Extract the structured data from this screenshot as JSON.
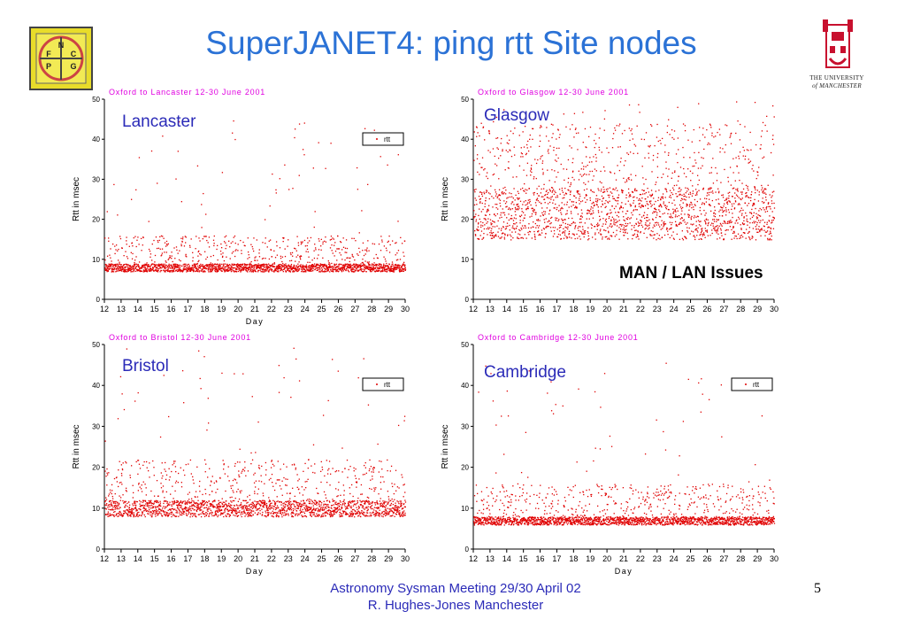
{
  "slide": {
    "title": "SuperJANET4: ping rtt Site nodes",
    "issue_label": "MAN / LAN Issues",
    "footer_line1": "Astronomy Sysman Meeting  29/30 April 02",
    "footer_line2": "R. Hughes-Jones  Manchester",
    "page_number": "5"
  },
  "logos": {
    "left_letters": [
      "N",
      "F",
      "C",
      "P",
      "G"
    ],
    "university_line1": "THE UNIVERSITY",
    "university_line2": "of MANCHESTER"
  },
  "colors": {
    "title": "#2b72d6",
    "label": "#2b2bb8",
    "series": "#e00000",
    "chart_title": "#e000e0"
  },
  "chart_data": [
    {
      "type": "scatter",
      "site": "Lancaster",
      "title": "Oxford to Lancaster 12-30 June 2001",
      "xlabel": "Day",
      "ylabel": "Rtt in msec",
      "xlim": [
        12,
        30
      ],
      "ylim": [
        0,
        50
      ],
      "x_ticks": [
        "12",
        "13",
        "14",
        "15",
        "16",
        "17",
        "18",
        "19",
        "20",
        "21",
        "22",
        "23",
        "24",
        "25",
        "26",
        "27",
        "28",
        "29",
        "30"
      ],
      "y_ticks": [
        "0",
        "10",
        "20",
        "30",
        "40",
        "50"
      ],
      "legend": {
        "label": "rtt",
        "position": "top-right"
      },
      "series": [
        {
          "name": "rtt",
          "baseline": [
            7,
            9
          ],
          "spread": 7,
          "outlier_max": 45
        }
      ]
    },
    {
      "type": "scatter",
      "site": "Glasgow",
      "title": "Oxford to Glasgow 12-30 June 2001",
      "xlabel": "",
      "ylabel": "Rtt in msec",
      "xlim": [
        12,
        30
      ],
      "ylim": [
        0,
        50
      ],
      "x_ticks": [
        "12",
        "13",
        "14",
        "15",
        "16",
        "17",
        "18",
        "19",
        "20",
        "21",
        "22",
        "23",
        "24",
        "25",
        "26",
        "27",
        "28",
        "29",
        "30"
      ],
      "y_ticks": [
        "0",
        "10",
        "20",
        "30",
        "40",
        "50"
      ],
      "series": [
        {
          "name": "rtt",
          "baseline": [
            15,
            28
          ],
          "spread": 16,
          "outlier_max": 50
        }
      ]
    },
    {
      "type": "scatter",
      "site": "Bristol",
      "title": "Oxford to Bristol 12-30 June 2001",
      "xlabel": "Day",
      "ylabel": "Rtt in msec",
      "xlim": [
        12,
        30
      ],
      "ylim": [
        0,
        50
      ],
      "x_ticks": [
        "12",
        "13",
        "14",
        "15",
        "16",
        "17",
        "18",
        "19",
        "20",
        "21",
        "22",
        "23",
        "24",
        "25",
        "26",
        "27",
        "28",
        "29",
        "30"
      ],
      "y_ticks": [
        "0",
        "10",
        "20",
        "30",
        "40",
        "50"
      ],
      "legend": {
        "label": "rtt",
        "position": "top-right"
      },
      "series": [
        {
          "name": "rtt",
          "baseline": [
            8,
            12
          ],
          "spread": 10,
          "outlier_max": 50
        }
      ]
    },
    {
      "type": "scatter",
      "site": "Cambridge",
      "title": "Oxford to Cambridge 12-30 June 2001",
      "xlabel": "Day",
      "ylabel": "Rtt in msec",
      "xlim": [
        12,
        30
      ],
      "ylim": [
        0,
        50
      ],
      "x_ticks": [
        "12",
        "13",
        "14",
        "15",
        "16",
        "17",
        "18",
        "19",
        "20",
        "21",
        "22",
        "23",
        "24",
        "25",
        "26",
        "27",
        "28",
        "29",
        "30"
      ],
      "y_ticks": [
        "0",
        "10",
        "20",
        "30",
        "40",
        "50"
      ],
      "legend": {
        "label": "rtt",
        "position": "top-right"
      },
      "series": [
        {
          "name": "rtt",
          "baseline": [
            6,
            8
          ],
          "spread": 8,
          "outlier_max": 47
        }
      ]
    }
  ]
}
